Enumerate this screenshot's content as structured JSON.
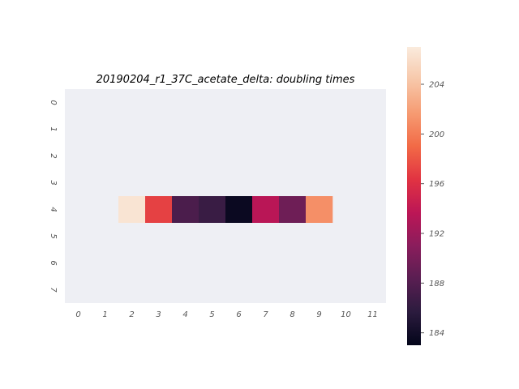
{
  "chart_data": {
    "type": "heatmap",
    "title": "20190204_r1_37C_acetate_delta: doubling times",
    "xlabel": "",
    "ylabel": "",
    "x_ticks": [
      "0",
      "1",
      "2",
      "3",
      "4",
      "5",
      "6",
      "7",
      "8",
      "9",
      "10",
      "11"
    ],
    "y_ticks": [
      "0",
      "1",
      "2",
      "3",
      "4",
      "5",
      "6",
      "7"
    ],
    "rows": 8,
    "cols": 12,
    "cells": [
      {
        "row": 4,
        "col": 2,
        "value": 206.5
      },
      {
        "row": 4,
        "col": 3,
        "value": 197.0
      },
      {
        "row": 4,
        "col": 4,
        "value": 187.5
      },
      {
        "row": 4,
        "col": 5,
        "value": 186.5
      },
      {
        "row": 4,
        "col": 6,
        "value": 183.5
      },
      {
        "row": 4,
        "col": 7,
        "value": 193.5
      },
      {
        "row": 4,
        "col": 8,
        "value": 189.5
      },
      {
        "row": 4,
        "col": 9,
        "value": 201.0
      }
    ],
    "empty_cell_color": "#eeeff4",
    "colorbar": {
      "vmin": 183.0,
      "vmax": 207.0,
      "ticks": [
        184,
        188,
        192,
        196,
        200,
        204
      ],
      "colormap": "rocket",
      "colormap_stops": [
        "#03051a",
        "#2b1b3e",
        "#591e52",
        "#8a1d5c",
        "#bc1656",
        "#e13342",
        "#f26a46",
        "#f69b72",
        "#f7c7a9",
        "#faebdd"
      ]
    }
  }
}
